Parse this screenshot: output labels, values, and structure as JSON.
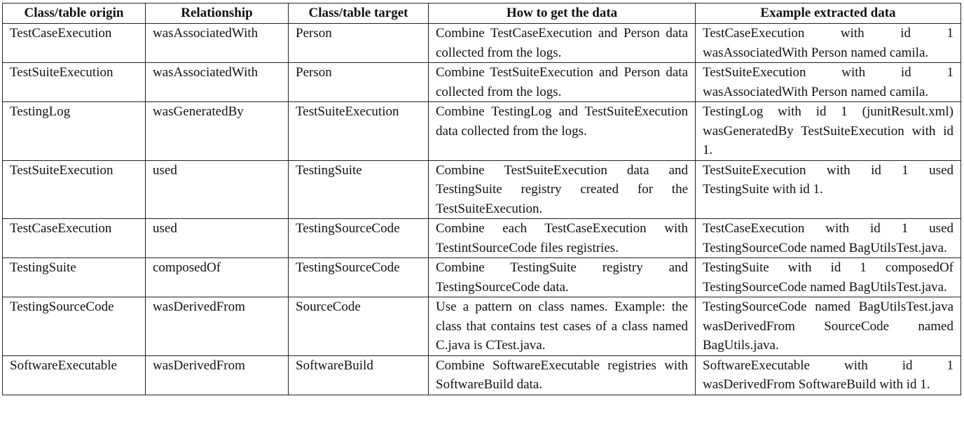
{
  "table": {
    "headers": [
      "Class/table origin",
      "Relationship",
      "Class/table target",
      "How to get the data",
      "Example extracted data"
    ],
    "rows": [
      [
        "TestCaseExecution",
        "wasAssociatedWith",
        "Person",
        "Combine TestCaseExecution and Person data collected from the logs.",
        "TestCaseExecution with id 1 wasAssociatedWith Person named camila."
      ],
      [
        "TestSuiteExecution",
        "wasAssociatedWith",
        "Person",
        "Combine TestSuiteExecution and Person data collected from the logs.",
        "TestSuiteExecution with id 1 wasAssociatedWith Person named camila."
      ],
      [
        "TestingLog",
        "wasGeneratedBy",
        "TestSuiteExecution",
        "Combine TestingLog and TestSuiteExecution data collected from the logs.",
        "TestingLog with id 1 (junitResult.xml) wasGeneratedBy TestSuiteExecution with id 1."
      ],
      [
        "TestSuiteExecution",
        "used",
        "TestingSuite",
        "Combine TestSuiteExecution data and TestingSuite registry created for the TestSuiteExecution.",
        "TestSuiteExecution with id 1 used TestingSuite with id 1."
      ],
      [
        "TestCaseExecution",
        "used",
        "TestingSourceCode",
        "Combine each TestCaseExecution with TestintSourceCode files registries.",
        "TestCaseExecution with id 1 used TestingSourceCode named BagUtilsTest.java."
      ],
      [
        "TestingSuite",
        "composedOf",
        "TestingSourceCode",
        "Combine TestingSuite registry and TestingSourceCode data.",
        "TestingSuite with id 1 composedOf TestingSourceCode named BagUtilsTest.java."
      ],
      [
        "TestingSourceCode",
        "wasDerivedFrom",
        "SourceCode",
        "Use a pattern on class names. Example: the class that contains test cases of a class named C.java is CTest.java.",
        "TestingSourceCode named BagUtilsTest.java wasDerivedFrom SourceCode named BagUtils.java."
      ],
      [
        "SoftwareExecutable",
        "wasDerivedFrom",
        "SoftwareBuild",
        "Combine SoftwareExecutable registries with SoftwareBuild data.",
        "SoftwareExecutable with id 1 wasDerivedFrom SoftwareBuild with id 1."
      ]
    ]
  }
}
